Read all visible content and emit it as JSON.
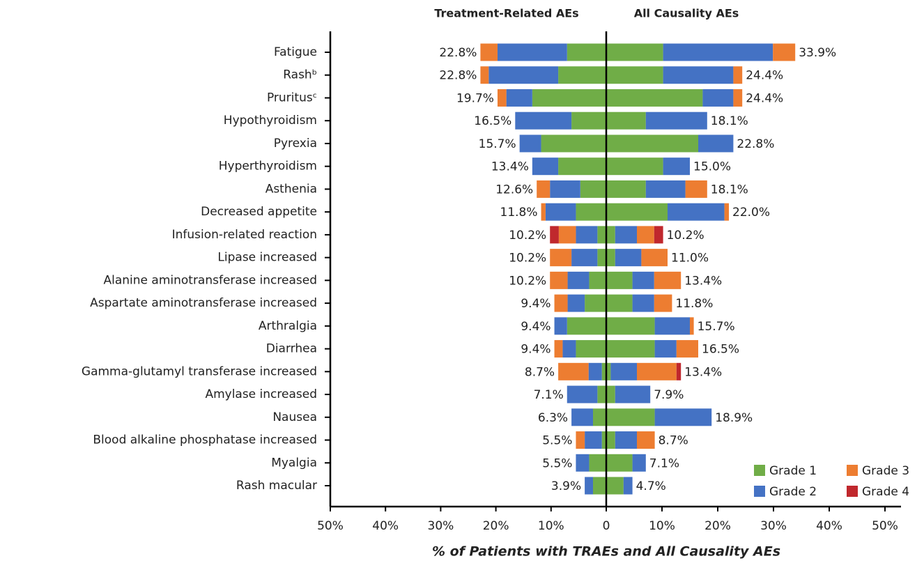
{
  "chart_data": {
    "type": "butterfly",
    "left_title": "Treatment-Related AEs",
    "right_title": "All Causality AEs",
    "xlabel": "% of Patients with TRAEs and All Causality AEs",
    "categories": [
      "Fatigue",
      "Rashᵇ",
      "Pruritusᶜ",
      "Hypothyroidism",
      "Pyrexia",
      "Hyperthyroidism",
      "Asthenia",
      "Decreased appetite",
      "Infusion-related reaction",
      "Lipase increased",
      "Alanine aminotransferase increased",
      "Aspartate aminotransferase increased",
      "Arthralgia",
      "Diarrhea",
      "Gamma-glutamyl transferase increased",
      "Amylase increased",
      "Nausea",
      "Blood alkaline phosphatase increased",
      "Myalgia",
      "Rash macular"
    ],
    "series": [
      {
        "name": "Grade 1",
        "color": "#70ad47",
        "left": [
          7.1,
          8.7,
          13.4,
          6.3,
          11.8,
          8.7,
          4.7,
          5.5,
          1.6,
          1.6,
          3.1,
          3.9,
          7.1,
          5.5,
          0.8,
          1.6,
          2.4,
          0.8,
          3.1,
          2.4
        ],
        "right": [
          10.2,
          10.2,
          17.3,
          7.1,
          16.5,
          10.2,
          7.1,
          11.0,
          1.6,
          1.6,
          4.7,
          4.7,
          8.7,
          8.7,
          0.8,
          1.6,
          8.7,
          1.6,
          4.7,
          3.1
        ]
      },
      {
        "name": "Grade 2",
        "color": "#4472c4",
        "left": [
          12.6,
          12.6,
          4.7,
          10.2,
          3.9,
          4.7,
          5.5,
          5.5,
          3.9,
          4.7,
          3.9,
          3.1,
          2.3,
          2.4,
          2.4,
          5.5,
          3.9,
          3.1,
          2.4,
          1.5
        ],
        "right": [
          19.7,
          12.6,
          5.5,
          11.0,
          6.3,
          4.8,
          7.1,
          10.2,
          3.9,
          4.7,
          3.9,
          3.9,
          6.3,
          3.9,
          4.7,
          6.3,
          10.2,
          3.9,
          2.4,
          1.6
        ]
      },
      {
        "name": "Grade 3",
        "color": "#ed7d31",
        "left": [
          3.1,
          1.5,
          1.6,
          0,
          0,
          0,
          2.4,
          0.8,
          3.1,
          3.9,
          3.2,
          2.4,
          0,
          1.5,
          5.5,
          0,
          0,
          1.6,
          0,
          0
        ],
        "right": [
          4.0,
          1.6,
          1.6,
          0,
          0,
          0,
          3.9,
          0.8,
          3.1,
          4.7,
          4.8,
          3.2,
          0.7,
          3.9,
          7.1,
          0,
          0,
          3.2,
          0,
          0
        ]
      },
      {
        "name": "Grade 4",
        "color": "#c0282d",
        "left": [
          0,
          0,
          0,
          0,
          0,
          0,
          0,
          0,
          1.6,
          0,
          0,
          0,
          0,
          0,
          0,
          0,
          0,
          0,
          0,
          0
        ],
        "right": [
          0,
          0,
          0,
          0,
          0,
          0,
          0,
          0,
          1.6,
          0,
          0,
          0,
          0,
          0,
          0.8,
          0,
          0,
          0,
          0,
          0
        ]
      }
    ],
    "left_totals": [
      22.8,
      22.8,
      19.7,
      16.5,
      15.7,
      13.4,
      12.6,
      11.8,
      10.2,
      10.2,
      10.2,
      9.4,
      9.4,
      9.4,
      8.7,
      7.1,
      6.3,
      5.5,
      5.5,
      3.9
    ],
    "left_total_labels": [
      "22.8%",
      "22.8%",
      "19.7%",
      "16.5%",
      "15.7%",
      "13.4%",
      "12.6%",
      "11.8%",
      "10.2%",
      "10.2%",
      "10.2%",
      "9.4%",
      "9.4%",
      "9.4%",
      "8.7%",
      "7.1%",
      "6.3%",
      "5.5%",
      "5.5%",
      "3.9%"
    ],
    "right_totals": [
      33.9,
      24.4,
      24.4,
      18.1,
      22.8,
      15.0,
      18.1,
      22.0,
      10.2,
      11.0,
      13.4,
      11.8,
      15.7,
      16.5,
      13.4,
      7.9,
      18.9,
      8.7,
      7.1,
      4.7
    ],
    "right_total_labels": [
      "33.9%",
      "24.4%",
      "24.4%",
      "18.1%",
      "22.8%",
      "15.0%",
      "18.1%",
      "22.0%",
      "10.2%",
      "11.0%",
      "13.4%",
      "11.8%",
      "15.7%",
      "16.5%",
      "13.4%",
      "7.9%",
      "18.9%",
      "8.7%",
      "7.1%",
      "4.7%"
    ],
    "left_xlim": [
      0,
      50
    ],
    "left_xticks": [
      {
        "value": 50,
        "label": "50%"
      },
      {
        "value": 40,
        "label": "40%"
      },
      {
        "value": 30,
        "label": "30%"
      },
      {
        "value": 20,
        "label": "20%"
      },
      {
        "value": 10,
        "label": "10%"
      }
    ],
    "right_xlim": [
      0,
      50
    ],
    "right_xticks": [
      0,
      {
        "value": 10,
        "label": "10%"
      },
      {
        "value": 20,
        "label": "20%"
      },
      {
        "value": 30,
        "label": "30%"
      },
      {
        "value": 40,
        "label": "40%"
      },
      {
        "value": 50,
        "label": "50%"
      }
    ]
  }
}
